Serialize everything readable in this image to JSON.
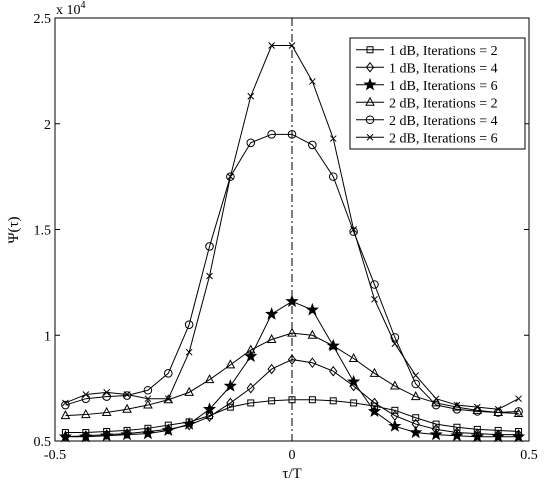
{
  "chart_data": {
    "type": "line",
    "title": "",
    "xlabel": "τ/T",
    "ylabel": "Ψ(τ)",
    "xlim": [
      -0.5,
      0.5
    ],
    "ylim": [
      5000,
      25000
    ],
    "x_ticks": [
      -0.5,
      0,
      0.5
    ],
    "x_tick_labels": [
      "-0.5",
      "0",
      "0.5"
    ],
    "y_ticks": [
      5000,
      10000,
      15000,
      20000,
      25000
    ],
    "y_tick_labels": [
      "0.5",
      "1",
      "1.5",
      "2",
      "2.5"
    ],
    "y_exponent_label": "x 10",
    "y_exponent": "4",
    "grid": false,
    "legend_position": "top-right",
    "reference_line": {
      "x": 0,
      "style": "dash-dot"
    },
    "x": [
      -0.478,
      -0.435,
      -0.391,
      -0.348,
      -0.304,
      -0.261,
      -0.217,
      -0.174,
      -0.13,
      -0.087,
      -0.043,
      0.0,
      0.043,
      0.087,
      0.13,
      0.174,
      0.217,
      0.261,
      0.304,
      0.348,
      0.391,
      0.435,
      0.478
    ],
    "series": [
      {
        "name": "1 dB, Iterations = 2",
        "marker": "square",
        "values": [
          5400,
          5400,
          5450,
          5500,
          5600,
          5750,
          5900,
          6200,
          6600,
          6800,
          6900,
          6950,
          6950,
          6900,
          6800,
          6650,
          6450,
          6100,
          5800,
          5650,
          5550,
          5500,
          5450
        ]
      },
      {
        "name": "1 dB, Iterations = 4",
        "marker": "diamond",
        "values": [
          5200,
          5250,
          5300,
          5350,
          5450,
          5550,
          5750,
          6150,
          6800,
          7500,
          8400,
          8850,
          8700,
          8300,
          7600,
          6800,
          6200,
          5800,
          5550,
          5400,
          5350,
          5300,
          5300
        ]
      },
      {
        "name": "1 dB, Iterations = 6",
        "marker": "star",
        "values": [
          5200,
          5200,
          5250,
          5300,
          5350,
          5500,
          5800,
          6500,
          7600,
          9000,
          11000,
          11600,
          11200,
          9500,
          7800,
          6400,
          5700,
          5400,
          5300,
          5250,
          5200,
          5200,
          5200
        ]
      },
      {
        "name": "2 dB, Iterations = 2",
        "marker": "triangle",
        "values": [
          6200,
          6250,
          6350,
          6500,
          6700,
          6950,
          7300,
          7900,
          8600,
          9300,
          9800,
          10100,
          10000,
          9500,
          8900,
          8200,
          7600,
          7100,
          6800,
          6600,
          6450,
          6350,
          6300
        ]
      },
      {
        "name": "2 dB, Iterations = 4",
        "marker": "circle",
        "values": [
          6700,
          7000,
          7100,
          7150,
          7400,
          8200,
          10500,
          14200,
          17500,
          19100,
          19500,
          19500,
          19000,
          17500,
          14900,
          12400,
          9900,
          7700,
          6700,
          6500,
          6400,
          6350,
          6400
        ]
      },
      {
        "name": "2 dB, Iterations = 6",
        "marker": "x",
        "values": [
          6800,
          7200,
          7300,
          7200,
          7000,
          7000,
          9200,
          12800,
          17500,
          21300,
          23700,
          23700,
          22000,
          19300,
          15000,
          11700,
          9600,
          8100,
          7000,
          6700,
          6600,
          6500,
          7000
        ]
      }
    ]
  }
}
